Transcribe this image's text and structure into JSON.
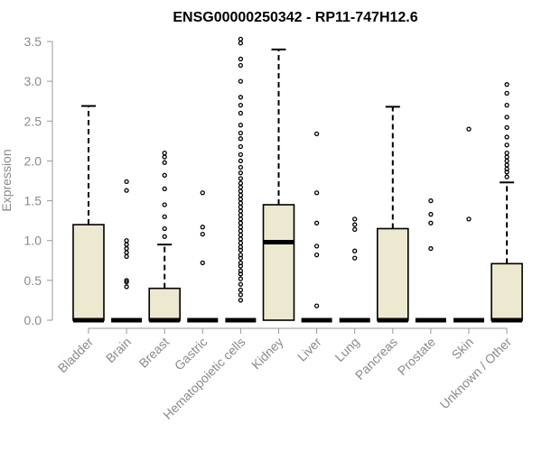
{
  "chart_data": {
    "type": "box",
    "title": "ENSG00000250342 - RP11-747H12.6",
    "ylabel": "Expression",
    "xlabel": "",
    "ylim": [
      0,
      3.5
    ],
    "yticks": [
      "0.0",
      "0.5",
      "1.0",
      "1.5",
      "2.0",
      "2.5",
      "3.0",
      "3.5"
    ],
    "box_fill": "#ede8d0",
    "box_stroke": "#000000",
    "categories": [
      "Bladder",
      "Brain",
      "Breast",
      "Gastric",
      "Hematopoietic cells",
      "Kidney",
      "Liver",
      "Lung",
      "Pancreas",
      "Prostate",
      "Skin",
      "Unknown / Other"
    ],
    "boxes": [
      {
        "label": "Bladder",
        "q1": 0,
        "median": 0,
        "q3": 1.2,
        "whisker_low": 0,
        "whisker_high": 2.69,
        "outliers": []
      },
      {
        "label": "Brain",
        "q1": 0,
        "median": 0,
        "q3": 0,
        "whisker_low": 0,
        "whisker_high": 0,
        "outliers": [
          0.42,
          0.48,
          0.5,
          0.8,
          0.85,
          0.9,
          0.95,
          1.0,
          1.63,
          1.74
        ]
      },
      {
        "label": "Breast",
        "q1": 0,
        "median": 0,
        "q3": 0.4,
        "whisker_low": 0,
        "whisker_high": 0.95,
        "outliers": [
          1.05,
          1.15,
          1.3,
          1.45,
          1.65,
          1.82,
          1.98,
          2.05,
          2.1
        ]
      },
      {
        "label": "Gastric",
        "q1": 0,
        "median": 0,
        "q3": 0,
        "whisker_low": 0,
        "whisker_high": 0,
        "outliers": [
          0.72,
          1.08,
          1.17,
          1.6
        ]
      },
      {
        "label": "Hematopoietic cells",
        "q1": 0,
        "median": 0,
        "q3": 0,
        "whisker_low": 0,
        "whisker_high": 0,
        "outliers": [
          0.25,
          0.32,
          0.38,
          0.45,
          0.52,
          0.58,
          0.62,
          0.68,
          0.72,
          0.78,
          0.82,
          0.88,
          0.92,
          0.97,
          1.02,
          1.07,
          1.12,
          1.17,
          1.22,
          1.27,
          1.32,
          1.37,
          1.42,
          1.47,
          1.52,
          1.57,
          1.62,
          1.67,
          1.72,
          1.78,
          1.85,
          1.92,
          2.0,
          2.08,
          2.18,
          2.28,
          2.35,
          2.45,
          2.6,
          2.7,
          2.8,
          3.0,
          3.2,
          3.28,
          3.48,
          3.53
        ]
      },
      {
        "label": "Kidney",
        "q1": 0,
        "median": 0.98,
        "q3": 1.45,
        "whisker_low": 0,
        "whisker_high": 3.4,
        "outliers": []
      },
      {
        "label": "Liver",
        "q1": 0,
        "median": 0,
        "q3": 0,
        "whisker_low": 0,
        "whisker_high": 0,
        "outliers": [
          0.18,
          0.82,
          0.93,
          1.22,
          1.6,
          2.34
        ]
      },
      {
        "label": "Lung",
        "q1": 0,
        "median": 0,
        "q3": 0,
        "whisker_low": 0,
        "whisker_high": 0,
        "outliers": [
          0.78,
          0.87,
          1.14,
          1.2,
          1.27
        ]
      },
      {
        "label": "Pancreas",
        "q1": 0,
        "median": 0,
        "q3": 1.15,
        "whisker_low": 0,
        "whisker_high": 2.68,
        "outliers": []
      },
      {
        "label": "Prostate",
        "q1": 0,
        "median": 0,
        "q3": 0,
        "whisker_low": 0,
        "whisker_high": 0,
        "outliers": [
          0.9,
          1.22,
          1.33,
          1.5
        ]
      },
      {
        "label": "Skin",
        "q1": 0,
        "median": 0,
        "q3": 0,
        "whisker_low": 0,
        "whisker_high": 0,
        "outliers": [
          1.27,
          2.4
        ]
      },
      {
        "label": "Unknown / Other",
        "q1": 0,
        "median": 0,
        "q3": 0.71,
        "whisker_low": 0,
        "whisker_high": 1.73,
        "outliers": [
          1.8,
          1.86,
          1.9,
          1.95,
          2.0,
          2.05,
          2.1,
          2.2,
          2.3,
          2.42,
          2.55,
          2.7,
          2.85,
          2.96
        ]
      }
    ]
  }
}
